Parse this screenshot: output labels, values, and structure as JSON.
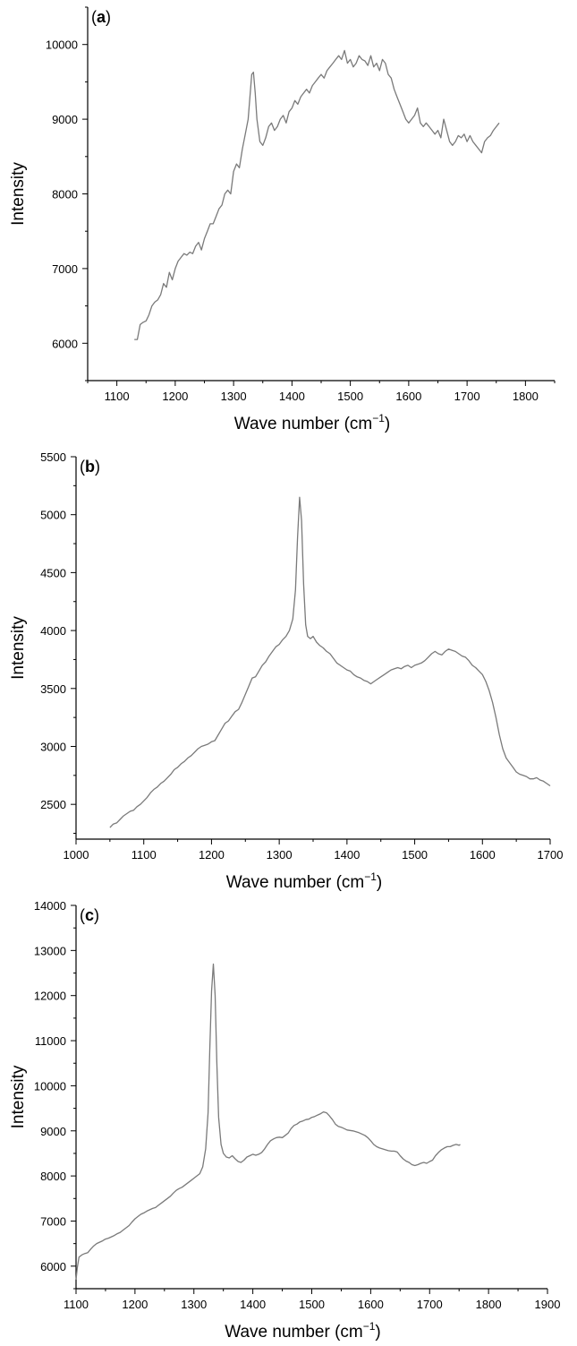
{
  "chart_data": [
    {
      "type": "line",
      "panel_label": "a",
      "xlabel": "Wave number (cm",
      "xlabel_sup": "−1",
      "xlabel_close": ")",
      "ylabel": "Intensity",
      "xlim": [
        1050,
        1850
      ],
      "ylim": [
        5500,
        10500
      ],
      "xticks": [
        1100,
        1200,
        1300,
        1400,
        1500,
        1600,
        1700,
        1800
      ],
      "yticks": [
        6000,
        7000,
        8000,
        9000,
        10000
      ],
      "series": [
        {
          "color": "#7a7a7a",
          "x": [
            1130,
            1135,
            1140,
            1145,
            1150,
            1155,
            1160,
            1165,
            1170,
            1175,
            1180,
            1185,
            1190,
            1195,
            1200,
            1205,
            1210,
            1215,
            1220,
            1225,
            1230,
            1235,
            1240,
            1245,
            1250,
            1255,
            1260,
            1265,
            1270,
            1275,
            1280,
            1285,
            1290,
            1295,
            1300,
            1305,
            1310,
            1315,
            1320,
            1325,
            1328,
            1331,
            1334,
            1337,
            1340,
            1345,
            1350,
            1355,
            1360,
            1365,
            1370,
            1375,
            1380,
            1385,
            1390,
            1395,
            1400,
            1405,
            1410,
            1415,
            1420,
            1425,
            1430,
            1435,
            1440,
            1445,
            1450,
            1455,
            1460,
            1465,
            1470,
            1475,
            1480,
            1485,
            1490,
            1495,
            1500,
            1505,
            1510,
            1515,
            1520,
            1525,
            1530,
            1535,
            1540,
            1545,
            1550,
            1555,
            1560,
            1565,
            1570,
            1575,
            1580,
            1585,
            1590,
            1595,
            1600,
            1605,
            1610,
            1615,
            1620,
            1625,
            1630,
            1635,
            1640,
            1645,
            1650,
            1655,
            1660,
            1665,
            1670,
            1675,
            1680,
            1685,
            1690,
            1695,
            1700,
            1705,
            1710,
            1715,
            1720,
            1725,
            1730,
            1735,
            1740,
            1745,
            1750,
            1755
          ],
          "y": [
            6050,
            6050,
            6250,
            6280,
            6300,
            6380,
            6500,
            6550,
            6580,
            6650,
            6800,
            6750,
            6950,
            6850,
            7000,
            7100,
            7150,
            7200,
            7180,
            7220,
            7200,
            7300,
            7350,
            7250,
            7400,
            7500,
            7600,
            7600,
            7700,
            7800,
            7850,
            8000,
            8050,
            8000,
            8300,
            8400,
            8350,
            8600,
            8800,
            9000,
            9300,
            9600,
            9630,
            9350,
            9000,
            8700,
            8650,
            8750,
            8900,
            8950,
            8850,
            8900,
            9000,
            9050,
            8950,
            9100,
            9150,
            9250,
            9200,
            9300,
            9350,
            9400,
            9350,
            9450,
            9500,
            9550,
            9600,
            9550,
            9650,
            9700,
            9750,
            9800,
            9850,
            9800,
            9920,
            9750,
            9800,
            9700,
            9750,
            9850,
            9800,
            9780,
            9720,
            9850,
            9700,
            9750,
            9650,
            9800,
            9750,
            9600,
            9550,
            9400,
            9300,
            9200,
            9100,
            9000,
            8950,
            9000,
            9050,
            9150,
            8950,
            8900,
            8950,
            8900,
            8850,
            8800,
            8850,
            8750,
            9000,
            8850,
            8700,
            8650,
            8700,
            8780,
            8750,
            8800,
            8700,
            8780,
            8700,
            8650,
            8600,
            8550,
            8700,
            8750,
            8780,
            8850,
            8900,
            8950
          ]
        }
      ]
    },
    {
      "type": "line",
      "panel_label": "b",
      "xlabel": "Wave number (cm",
      "xlabel_sup": "−1",
      "xlabel_close": ")",
      "ylabel": "Intensity",
      "xlim": [
        1000,
        1700
      ],
      "ylim": [
        2200,
        5500
      ],
      "xticks": [
        1000,
        1100,
        1200,
        1300,
        1400,
        1500,
        1600,
        1700
      ],
      "yticks": [
        2500,
        3000,
        3500,
        4000,
        4500,
        5000,
        5500
      ],
      "series": [
        {
          "color": "#7a7a7a",
          "x": [
            1050,
            1055,
            1060,
            1065,
            1070,
            1075,
            1080,
            1085,
            1090,
            1095,
            1100,
            1105,
            1110,
            1115,
            1120,
            1125,
            1130,
            1135,
            1140,
            1145,
            1150,
            1155,
            1160,
            1165,
            1170,
            1175,
            1180,
            1185,
            1190,
            1195,
            1200,
            1205,
            1210,
            1215,
            1220,
            1225,
            1230,
            1235,
            1240,
            1245,
            1250,
            1255,
            1260,
            1265,
            1270,
            1275,
            1280,
            1285,
            1290,
            1295,
            1300,
            1305,
            1310,
            1315,
            1320,
            1324,
            1327,
            1330,
            1333,
            1336,
            1339,
            1342,
            1346,
            1350,
            1355,
            1360,
            1365,
            1370,
            1375,
            1380,
            1385,
            1390,
            1395,
            1400,
            1405,
            1410,
            1415,
            1420,
            1425,
            1430,
            1435,
            1440,
            1445,
            1450,
            1455,
            1460,
            1465,
            1470,
            1475,
            1480,
            1485,
            1490,
            1495,
            1500,
            1505,
            1510,
            1515,
            1520,
            1525,
            1530,
            1535,
            1540,
            1545,
            1550,
            1555,
            1560,
            1565,
            1570,
            1575,
            1580,
            1585,
            1590,
            1595,
            1600,
            1605,
            1610,
            1615,
            1620,
            1625,
            1630,
            1635,
            1640,
            1645,
            1650,
            1655,
            1660,
            1665,
            1670,
            1675,
            1680,
            1685,
            1690,
            1695,
            1700
          ],
          "y": [
            2300,
            2330,
            2340,
            2370,
            2400,
            2420,
            2440,
            2450,
            2480,
            2500,
            2530,
            2560,
            2600,
            2630,
            2650,
            2680,
            2700,
            2730,
            2760,
            2800,
            2820,
            2850,
            2870,
            2900,
            2920,
            2950,
            2980,
            3000,
            3010,
            3020,
            3040,
            3050,
            3100,
            3150,
            3200,
            3220,
            3260,
            3300,
            3320,
            3380,
            3450,
            3520,
            3590,
            3600,
            3650,
            3700,
            3730,
            3780,
            3820,
            3860,
            3880,
            3920,
            3950,
            4000,
            4100,
            4350,
            4800,
            5150,
            4950,
            4400,
            4050,
            3950,
            3930,
            3950,
            3900,
            3870,
            3850,
            3820,
            3800,
            3760,
            3720,
            3700,
            3680,
            3660,
            3650,
            3620,
            3600,
            3590,
            3570,
            3560,
            3540,
            3560,
            3580,
            3600,
            3620,
            3640,
            3660,
            3670,
            3680,
            3670,
            3690,
            3700,
            3680,
            3700,
            3710,
            3720,
            3740,
            3770,
            3800,
            3820,
            3800,
            3790,
            3820,
            3840,
            3830,
            3820,
            3800,
            3780,
            3770,
            3740,
            3700,
            3680,
            3650,
            3620,
            3560,
            3480,
            3380,
            3250,
            3100,
            2980,
            2900,
            2860,
            2820,
            2780,
            2760,
            2750,
            2740,
            2720,
            2720,
            2730,
            2710,
            2700,
            2680,
            2660
          ]
        }
      ]
    },
    {
      "type": "line",
      "panel_label": "c",
      "xlabel": "Wave number (cm",
      "xlabel_sup": "−1",
      "xlabel_close": ")",
      "ylabel": "Intensity",
      "xlim": [
        1100,
        1900
      ],
      "ylim": [
        5500,
        14000
      ],
      "xticks": [
        1100,
        1200,
        1300,
        1400,
        1500,
        1600,
        1700,
        1800,
        1900
      ],
      "yticks": [
        6000,
        7000,
        8000,
        9000,
        10000,
        11000,
        12000,
        13000,
        14000
      ],
      "series": [
        {
          "color": "#7a7a7a",
          "x": [
            1100,
            1102,
            1105,
            1110,
            1115,
            1120,
            1125,
            1130,
            1135,
            1140,
            1145,
            1150,
            1155,
            1160,
            1165,
            1170,
            1175,
            1180,
            1185,
            1190,
            1195,
            1200,
            1205,
            1210,
            1215,
            1220,
            1225,
            1230,
            1235,
            1240,
            1245,
            1250,
            1255,
            1260,
            1265,
            1270,
            1275,
            1280,
            1285,
            1290,
            1295,
            1300,
            1305,
            1310,
            1315,
            1320,
            1324,
            1327,
            1330,
            1333,
            1336,
            1339,
            1342,
            1346,
            1350,
            1355,
            1360,
            1365,
            1370,
            1375,
            1380,
            1385,
            1390,
            1395,
            1400,
            1405,
            1410,
            1415,
            1420,
            1425,
            1430,
            1435,
            1440,
            1445,
            1450,
            1455,
            1460,
            1465,
            1470,
            1475,
            1480,
            1485,
            1490,
            1495,
            1500,
            1505,
            1510,
            1515,
            1520,
            1525,
            1530,
            1535,
            1540,
            1545,
            1550,
            1555,
            1560,
            1565,
            1570,
            1575,
            1580,
            1585,
            1590,
            1595,
            1600,
            1605,
            1610,
            1615,
            1620,
            1625,
            1630,
            1635,
            1640,
            1645,
            1650,
            1655,
            1660,
            1665,
            1670,
            1675,
            1680,
            1685,
            1690,
            1695,
            1700,
            1705,
            1710,
            1715,
            1720,
            1725,
            1730,
            1735,
            1740,
            1745,
            1750,
            1752
          ],
          "y": [
            5700,
            5950,
            6200,
            6250,
            6280,
            6300,
            6380,
            6450,
            6500,
            6530,
            6560,
            6600,
            6620,
            6650,
            6680,
            6720,
            6750,
            6800,
            6850,
            6900,
            6980,
            7050,
            7100,
            7150,
            7180,
            7220,
            7250,
            7280,
            7300,
            7350,
            7400,
            7450,
            7500,
            7550,
            7620,
            7680,
            7720,
            7750,
            7800,
            7850,
            7900,
            7950,
            8000,
            8050,
            8200,
            8600,
            9400,
            10800,
            12100,
            12700,
            12000,
            10500,
            9300,
            8700,
            8500,
            8420,
            8400,
            8450,
            8380,
            8320,
            8300,
            8350,
            8420,
            8450,
            8480,
            8460,
            8480,
            8520,
            8600,
            8700,
            8780,
            8820,
            8850,
            8860,
            8850,
            8900,
            8950,
            9050,
            9120,
            9150,
            9200,
            9220,
            9250,
            9260,
            9300,
            9320,
            9350,
            9380,
            9420,
            9400,
            9330,
            9250,
            9150,
            9100,
            9080,
            9050,
            9020,
            9010,
            9000,
            8980,
            8960,
            8930,
            8900,
            8850,
            8780,
            8700,
            8650,
            8620,
            8600,
            8580,
            8560,
            8550,
            8550,
            8530,
            8450,
            8380,
            8330,
            8300,
            8250,
            8230,
            8250,
            8280,
            8300,
            8280,
            8320,
            8350,
            8450,
            8520,
            8580,
            8620,
            8650,
            8650,
            8680,
            8700,
            8680,
            8700
          ]
        }
      ]
    }
  ]
}
